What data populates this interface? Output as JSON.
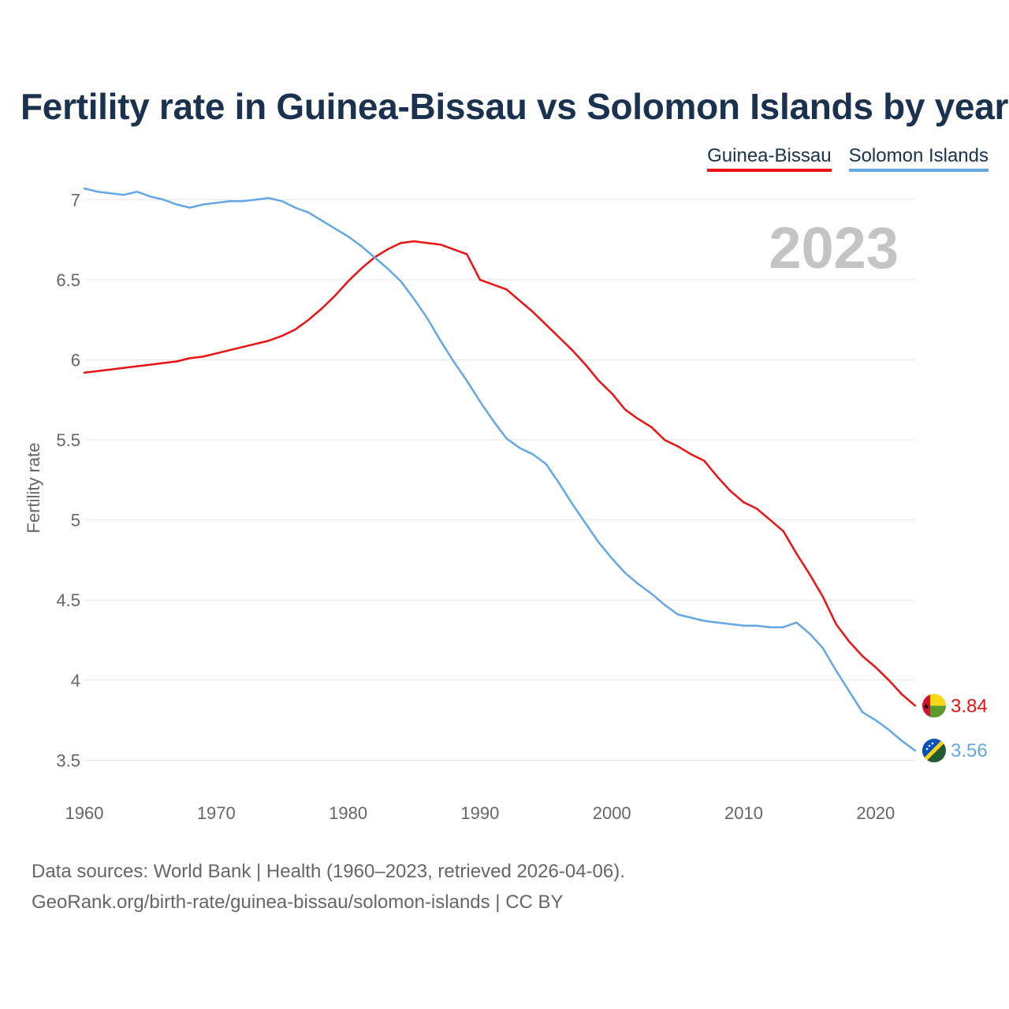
{
  "title": "Fertility rate in Guinea-Bissau vs Solomon Islands by year",
  "legend": {
    "guinea_bissau": "Guinea-Bissau",
    "solomon_islands": "Solomon Islands"
  },
  "footer": {
    "line1": "Data sources: World Bank | Health (1960–2023, retrieved 2026-04-06).",
    "line2": "GeoRank.org/birth-rate/guinea-bissau/solomon-islands | CC BY"
  },
  "colors": {
    "guinea_bissau": "#ee1111",
    "solomon_islands": "#63a7e8",
    "year_watermark": "#c4c4c4",
    "grid": "#e6e6e6",
    "axis_text": "#666666"
  },
  "chart_data": {
    "type": "line",
    "title": "Fertility rate in Guinea-Bissau vs Solomon Islands by year",
    "year_label": "2023",
    "xlabel": "",
    "ylabel": "Fertility rate",
    "xlim": [
      1960,
      2023
    ],
    "ylim": [
      3.3,
      7.1
    ],
    "xticks": [
      1960,
      1970,
      1980,
      1990,
      2000,
      2010,
      2020
    ],
    "yticks": [
      3.5,
      4,
      4.5,
      5,
      5.5,
      6,
      6.5,
      7
    ],
    "grid": true,
    "legend": "top-right",
    "x": [
      1960,
      1961,
      1962,
      1963,
      1964,
      1965,
      1966,
      1967,
      1968,
      1969,
      1970,
      1971,
      1972,
      1973,
      1974,
      1975,
      1976,
      1977,
      1978,
      1979,
      1980,
      1981,
      1982,
      1983,
      1984,
      1985,
      1986,
      1987,
      1988,
      1989,
      1990,
      1991,
      1992,
      1993,
      1994,
      1995,
      1996,
      1997,
      1998,
      1999,
      2000,
      2001,
      2002,
      2003,
      2004,
      2005,
      2006,
      2007,
      2008,
      2009,
      2010,
      2011,
      2012,
      2013,
      2014,
      2015,
      2016,
      2017,
      2018,
      2019,
      2020,
      2021,
      2022,
      2023
    ],
    "series": [
      {
        "name": "Guinea-Bissau",
        "end_label": "3.84",
        "values": [
          5.92,
          5.93,
          5.94,
          5.95,
          5.96,
          5.97,
          5.98,
          5.99,
          6.01,
          6.02,
          6.04,
          6.06,
          6.08,
          6.1,
          6.12,
          6.15,
          6.19,
          6.25,
          6.32,
          6.4,
          6.49,
          6.57,
          6.64,
          6.69,
          6.73,
          6.74,
          6.73,
          6.72,
          6.69,
          6.66,
          6.5,
          6.47,
          6.44,
          6.37,
          6.3,
          6.22,
          6.14,
          6.06,
          5.97,
          5.87,
          5.79,
          5.69,
          5.63,
          5.58,
          5.5,
          5.46,
          5.41,
          5.37,
          5.27,
          5.18,
          5.11,
          5.07,
          5.0,
          4.93,
          4.79,
          4.66,
          4.52,
          4.35,
          4.24,
          4.15,
          4.08,
          4.0,
          3.91,
          3.84
        ]
      },
      {
        "name": "Solomon Islands",
        "end_label": "3.56",
        "values": [
          7.07,
          7.05,
          7.04,
          7.03,
          7.05,
          7.02,
          7.0,
          6.97,
          6.95,
          6.97,
          6.98,
          6.99,
          6.99,
          7.0,
          7.01,
          6.99,
          6.95,
          6.92,
          6.87,
          6.82,
          6.77,
          6.71,
          6.64,
          6.57,
          6.49,
          6.38,
          6.26,
          6.12,
          5.99,
          5.87,
          5.74,
          5.62,
          5.51,
          5.45,
          5.41,
          5.35,
          5.23,
          5.1,
          4.98,
          4.86,
          4.76,
          4.67,
          4.6,
          4.54,
          4.47,
          4.41,
          4.39,
          4.37,
          4.36,
          4.35,
          4.34,
          4.34,
          4.33,
          4.33,
          4.36,
          4.29,
          4.2,
          4.06,
          3.93,
          3.8,
          3.75,
          3.69,
          3.62,
          3.56
        ]
      }
    ]
  }
}
